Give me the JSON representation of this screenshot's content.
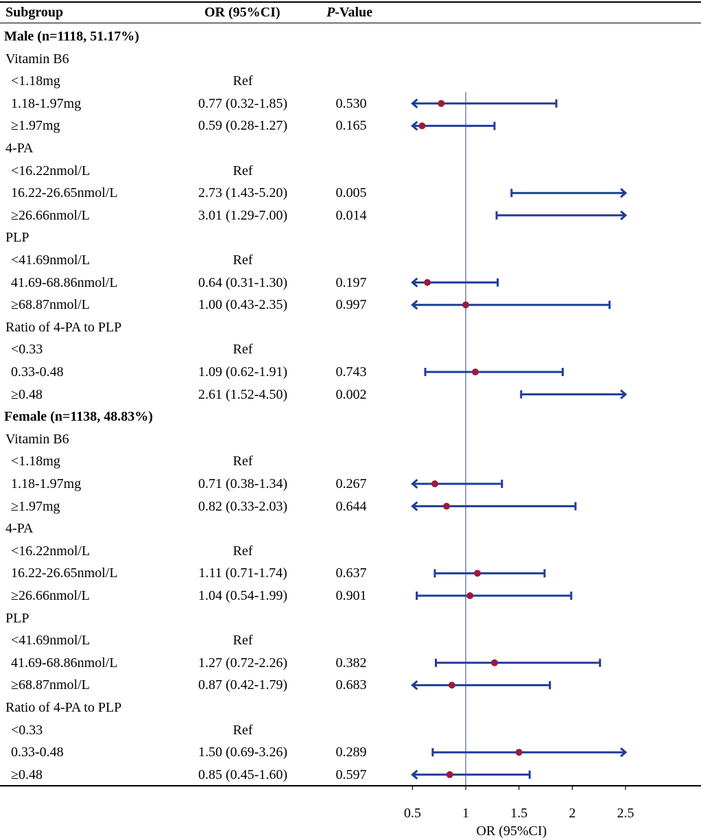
{
  "chart_data": {
    "type": "forest",
    "columns": {
      "subgroup": "Subgroup",
      "or": "OR (95%CI)",
      "p_prefix": "P",
      "p_suffix": "-Value"
    },
    "x_axis": {
      "label": "OR (95%CI)",
      "ticks": [
        0.5,
        1,
        1.5,
        2,
        2.5
      ],
      "tick_labels": [
        "0.5",
        "1",
        "1.5",
        "2",
        "2.5"
      ],
      "range": [
        0.5,
        2.5
      ],
      "reference_line": 1
    },
    "marker_color": "#9b1b3a",
    "line_color": "#1f3d9a",
    "rows": [
      {
        "label": "Male (n=1118, 51.17%)",
        "kind": "group"
      },
      {
        "label": "Vitamin B6",
        "kind": "variable"
      },
      {
        "label": "<1.18mg",
        "kind": "level",
        "or_text": "Ref"
      },
      {
        "label": "1.18-1.97mg",
        "kind": "level",
        "or_text": "0.77 (0.32-1.85)",
        "p": "0.530",
        "or": 0.77,
        "lo": 0.32,
        "hi": 1.85
      },
      {
        "label": "≥1.97mg",
        "kind": "level",
        "or_text": "0.59 (0.28-1.27)",
        "p": "0.165",
        "or": 0.59,
        "lo": 0.28,
        "hi": 1.27
      },
      {
        "label": "4-PA",
        "kind": "variable"
      },
      {
        "label": "<16.22nmol/L",
        "kind": "level",
        "or_text": "Ref"
      },
      {
        "label": "16.22-26.65nmol/L",
        "kind": "level",
        "or_text": "2.73 (1.43-5.20)",
        "p": "0.005",
        "or": 2.73,
        "lo": 1.43,
        "hi": 5.2
      },
      {
        "label": "≥26.66nmol/L",
        "kind": "level",
        "or_text": "3.01 (1.29-7.00)",
        "p": "0.014",
        "or": 3.01,
        "lo": 1.29,
        "hi": 7.0
      },
      {
        "label": "PLP",
        "kind": "variable"
      },
      {
        "label": "<41.69nmol/L",
        "kind": "level",
        "or_text": "Ref"
      },
      {
        "label": "41.69-68.86nmol/L",
        "kind": "level",
        "or_text": "0.64 (0.31-1.30)",
        "p": "0.197",
        "or": 0.64,
        "lo": 0.31,
        "hi": 1.3
      },
      {
        "label": "≥68.87nmol/L",
        "kind": "level",
        "or_text": "1.00 (0.43-2.35)",
        "p": "0.997",
        "or": 1.0,
        "lo": 0.43,
        "hi": 2.35
      },
      {
        "label": "Ratio of 4-PA to PLP",
        "kind": "variable"
      },
      {
        "label": "<0.33",
        "kind": "level",
        "or_text": "Ref"
      },
      {
        "label": "0.33-0.48",
        "kind": "level",
        "or_text": "1.09 (0.62-1.91)",
        "p": "0.743",
        "or": 1.09,
        "lo": 0.62,
        "hi": 1.91
      },
      {
        "label": "≥0.48",
        "kind": "level",
        "or_text": "2.61 (1.52-4.50)",
        "p": "0.002",
        "or": 2.61,
        "lo": 1.52,
        "hi": 4.5
      },
      {
        "label": "Female (n=1138, 48.83%)",
        "kind": "group"
      },
      {
        "label": "Vitamin B6",
        "kind": "variable"
      },
      {
        "label": "<1.18mg",
        "kind": "level",
        "or_text": "Ref"
      },
      {
        "label": "1.18-1.97mg",
        "kind": "level",
        "or_text": "0.71 (0.38-1.34)",
        "p": "0.267",
        "or": 0.71,
        "lo": 0.38,
        "hi": 1.34
      },
      {
        "label": "≥1.97mg",
        "kind": "level",
        "or_text": "0.82 (0.33-2.03)",
        "p": "0.644",
        "or": 0.82,
        "lo": 0.33,
        "hi": 2.03
      },
      {
        "label": "4-PA",
        "kind": "variable"
      },
      {
        "label": "<16.22nmol/L",
        "kind": "level",
        "or_text": "Ref"
      },
      {
        "label": "16.22-26.65nmol/L",
        "kind": "level",
        "or_text": "1.11 (0.71-1.74)",
        "p": "0.637",
        "or": 1.11,
        "lo": 0.71,
        "hi": 1.74
      },
      {
        "label": "≥26.66nmol/L",
        "kind": "level",
        "or_text": "1.04 (0.54-1.99)",
        "p": "0.901",
        "or": 1.04,
        "lo": 0.54,
        "hi": 1.99
      },
      {
        "label": "PLP",
        "kind": "variable"
      },
      {
        "label": "<41.69nmol/L",
        "kind": "level",
        "or_text": "Ref"
      },
      {
        "label": "41.69-68.86nmol/L",
        "kind": "level",
        "or_text": "1.27 (0.72-2.26)",
        "p": "0.382",
        "or": 1.27,
        "lo": 0.72,
        "hi": 2.26
      },
      {
        "label": "≥68.87nmol/L",
        "kind": "level",
        "or_text": "0.87 (0.42-1.79)",
        "p": "0.683",
        "or": 0.87,
        "lo": 0.42,
        "hi": 1.79
      },
      {
        "label": "Ratio of 4-PA to PLP",
        "kind": "variable"
      },
      {
        "label": "<0.33",
        "kind": "level",
        "or_text": "Ref"
      },
      {
        "label": "0.33-0.48",
        "kind": "level",
        "or_text": "1.50 (0.69-3.26)",
        "p": "0.289",
        "or": 1.5,
        "lo": 0.69,
        "hi": 3.26
      },
      {
        "label": "≥0.48",
        "kind": "level",
        "or_text": "0.85 (0.45-1.60)",
        "p": "0.597",
        "or": 0.85,
        "lo": 0.45,
        "hi": 1.6
      }
    ]
  }
}
